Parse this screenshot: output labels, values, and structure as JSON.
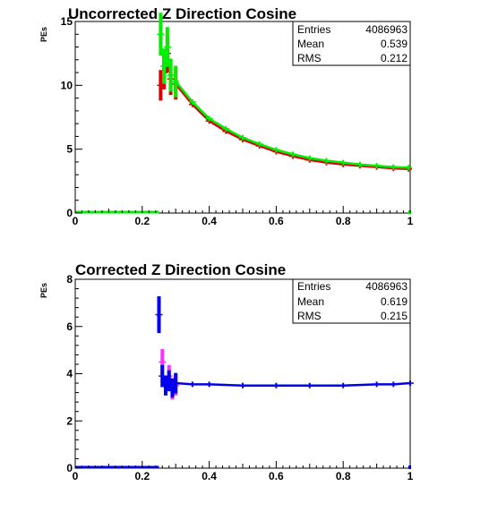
{
  "chart_data": [
    {
      "type": "histogram",
      "title": "Uncorrected Z Direction Cosine",
      "ylabel": "PEs",
      "xlabel": "",
      "xlim": [
        0,
        1
      ],
      "ylim": [
        0,
        15
      ],
      "x_ticks": [
        "0",
        "0.2",
        "0.4",
        "0.6",
        "0.8",
        "1"
      ],
      "y_ticks": [
        "0",
        "5",
        "10",
        "15"
      ],
      "grid": false,
      "stats": {
        "entries_label": "Entries",
        "entries": "4086963",
        "mean_label": "Mean",
        "mean": "0.539",
        "rms_label": "RMS",
        "rms": "0.212"
      },
      "colors": {
        "primary": "#00ee00",
        "secondary": "#dd0000"
      },
      "series": [
        {
          "color": "#00ee00",
          "x": [
            0.255,
            0.265,
            0.275,
            0.285,
            0.3,
            0.35,
            0.4,
            0.45,
            0.5,
            0.55,
            0.6,
            0.65,
            0.7,
            0.75,
            0.8,
            0.85,
            0.9,
            0.95,
            0.995
          ],
          "y": [
            14.0,
            11.5,
            13.0,
            10.8,
            10.3,
            8.7,
            7.4,
            6.6,
            5.9,
            5.4,
            4.95,
            4.6,
            4.3,
            4.1,
            3.95,
            3.8,
            3.7,
            3.6,
            3.55
          ]
        },
        {
          "color": "#dd0000",
          "x": [
            0.255,
            0.265,
            0.275,
            0.285,
            0.3,
            0.35,
            0.4,
            0.45,
            0.5,
            0.55,
            0.6,
            0.65,
            0.7,
            0.75,
            0.8,
            0.85,
            0.9,
            0.95,
            0.995
          ],
          "y": [
            10.0,
            11.0,
            12.5,
            10.5,
            10.1,
            8.5,
            7.2,
            6.4,
            5.75,
            5.25,
            4.8,
            4.45,
            4.15,
            3.95,
            3.8,
            3.7,
            3.6,
            3.5,
            3.45
          ]
        }
      ]
    },
    {
      "type": "histogram",
      "title": "Corrected Z Direction Cosine",
      "ylabel": "PEs",
      "xlabel": "",
      "xlim": [
        0,
        1
      ],
      "ylim": [
        0,
        8
      ],
      "x_ticks": [
        "0",
        "0.2",
        "0.4",
        "0.6",
        "0.8",
        "1"
      ],
      "y_ticks": [
        "0",
        "2",
        "4",
        "6",
        "8"
      ],
      "grid": false,
      "stats": {
        "entries_label": "Entries",
        "entries": "4086963",
        "mean_label": "Mean",
        "mean": "0.619",
        "rms_label": "RMS",
        "rms": "0.215"
      },
      "colors": {
        "primary": "#0000ee",
        "secondary": "#ff33ff"
      },
      "series": [
        {
          "color": "#0000ee",
          "x": [
            0.25,
            0.26,
            0.27,
            0.28,
            0.29,
            0.3,
            0.35,
            0.4,
            0.5,
            0.6,
            0.7,
            0.8,
            0.9,
            0.95,
            1.0
          ],
          "y": [
            6.5,
            3.9,
            3.5,
            3.7,
            3.4,
            3.6,
            3.55,
            3.55,
            3.5,
            3.5,
            3.5,
            3.5,
            3.55,
            3.55,
            3.6
          ]
        },
        {
          "color": "#ff33ff",
          "x": [
            0.26,
            0.27,
            0.28,
            0.29,
            0.3
          ],
          "y": [
            4.5,
            3.5,
            3.9,
            3.3,
            3.5
          ]
        }
      ]
    }
  ]
}
